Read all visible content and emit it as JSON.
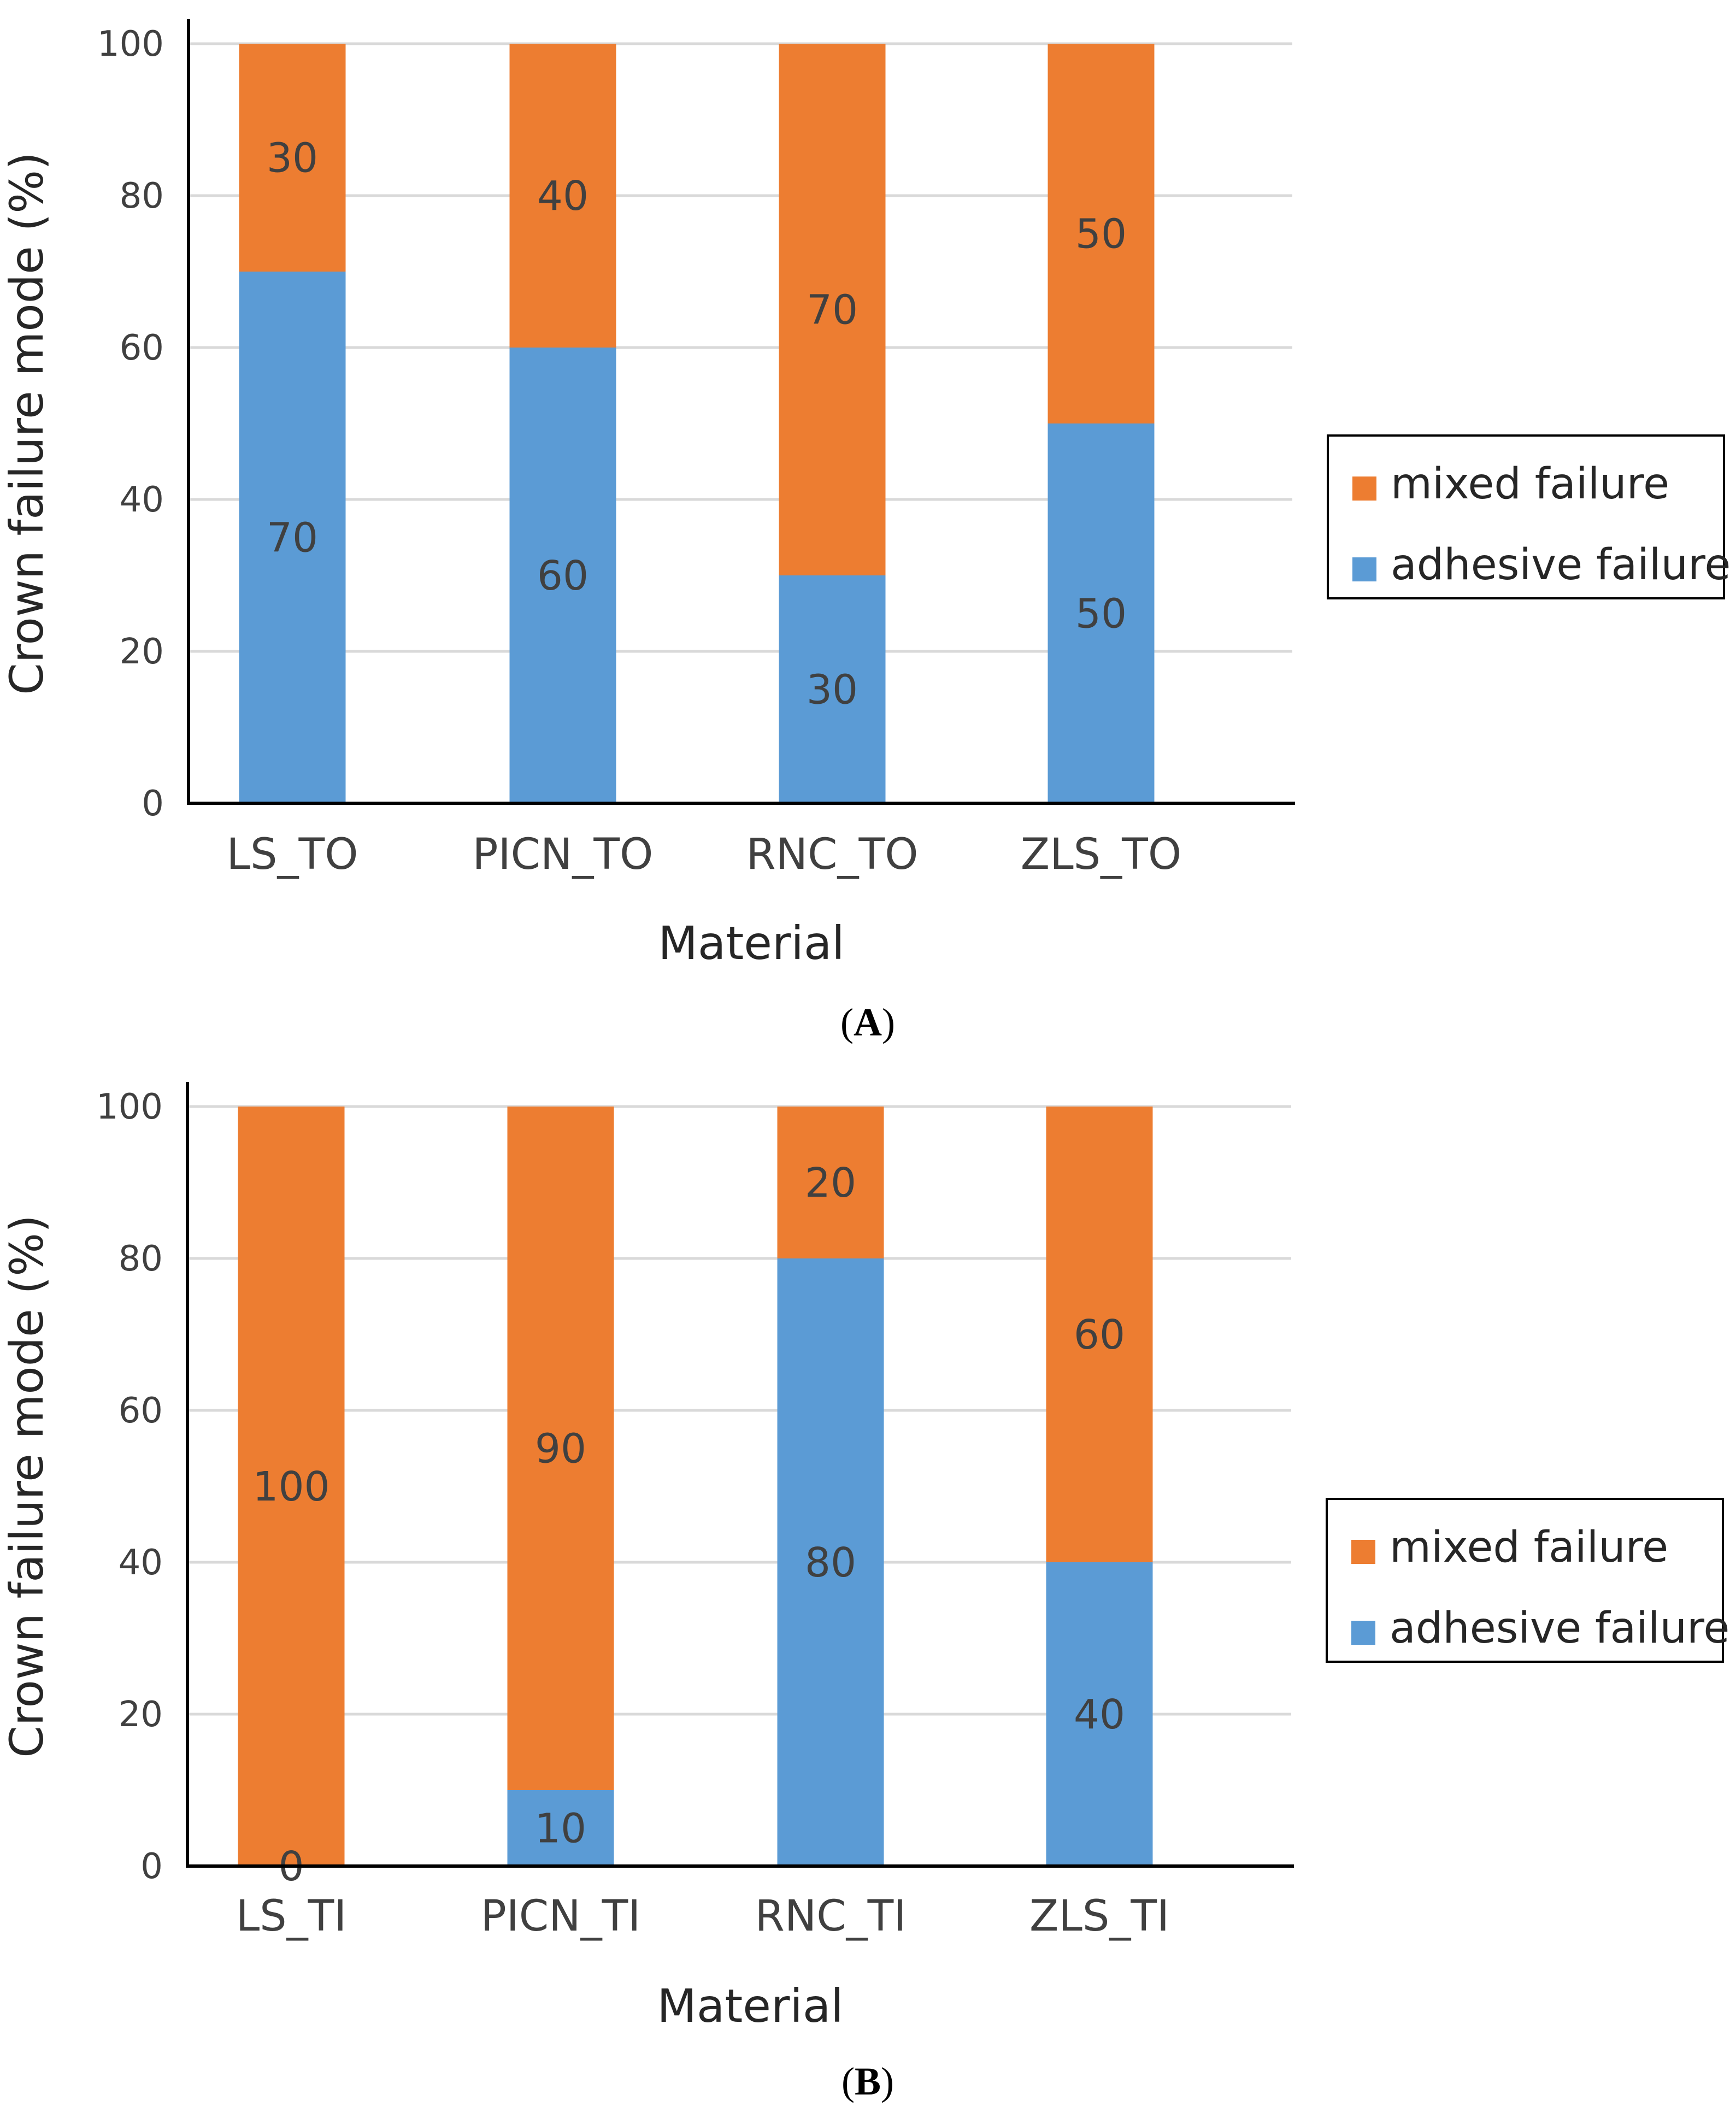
{
  "colors": {
    "mixed": "#ED7D31",
    "adhesive": "#5B9BD5",
    "grid": "#D9D9D9",
    "axis": "#000000"
  },
  "chart_data": [
    {
      "type": "bar",
      "stacked": true,
      "panel": "A",
      "categories": [
        "LS_TO",
        "PICN_TO",
        "RNC_TO",
        "ZLS_TO"
      ],
      "series": [
        {
          "name": "adhesive failure",
          "values": [
            70,
            60,
            30,
            50
          ]
        },
        {
          "name": "mixed failure",
          "values": [
            30,
            40,
            70,
            50
          ]
        }
      ],
      "xlabel": "Material",
      "ylabel": "Crown failure mode (%)",
      "ylim": [
        0,
        100
      ],
      "yticks": [
        0,
        20,
        40,
        60,
        80,
        100
      ],
      "legend": [
        "mixed failure",
        "adhesive failure"
      ],
      "legend_position": "right",
      "grid": true
    },
    {
      "type": "bar",
      "stacked": true,
      "panel": "B",
      "categories": [
        "LS_TI",
        "PICN_TI",
        "RNC_TI",
        "ZLS_TI"
      ],
      "series": [
        {
          "name": "adhesive failure",
          "values": [
            0,
            10,
            80,
            40
          ]
        },
        {
          "name": "mixed failure",
          "values": [
            100,
            90,
            20,
            60
          ]
        }
      ],
      "xlabel": "Material",
      "ylabel": "Crown failure mode (%)",
      "ylim": [
        0,
        100
      ],
      "yticks": [
        0,
        20,
        40,
        60,
        80,
        100
      ],
      "legend": [
        "mixed failure",
        "adhesive failure"
      ],
      "legend_position": "right",
      "grid": true
    }
  ]
}
